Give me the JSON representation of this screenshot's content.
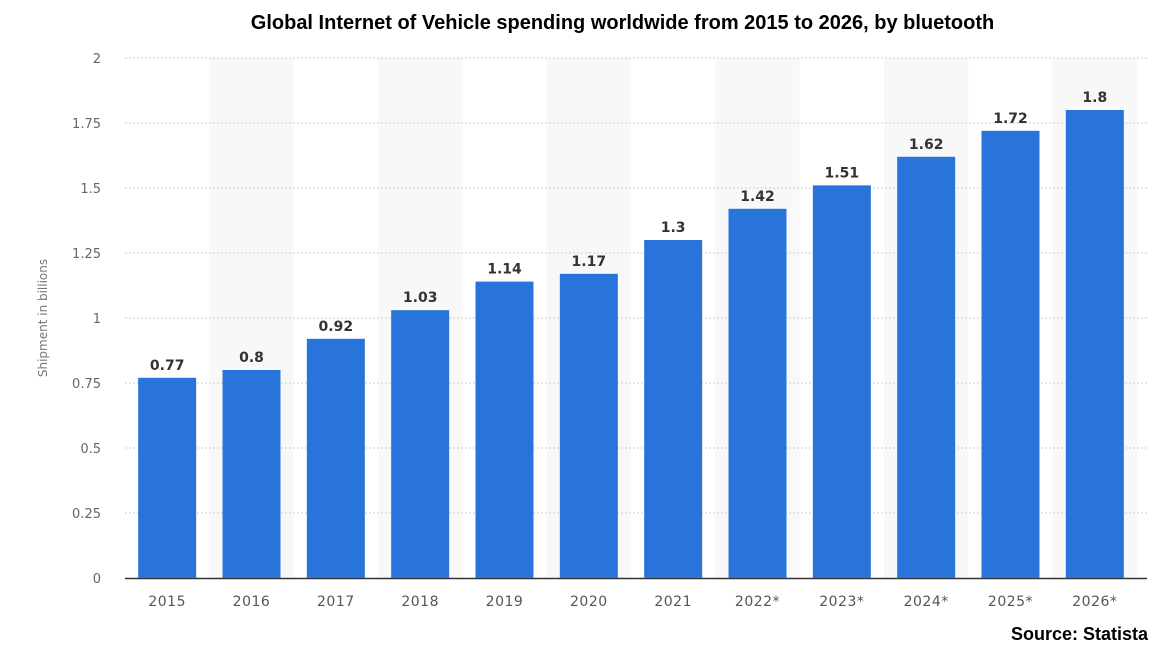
{
  "chart_data": {
    "type": "bar",
    "title": "Global Internet of Vehicle spending worldwide from 2015 to 2026, by bluetooth",
    "xlabel": "",
    "ylabel": "Shipment in billions",
    "ylim": [
      0,
      2
    ],
    "yticks": [
      "0",
      "0.25",
      "0.5",
      "0.75",
      "1",
      "1.25",
      "1.5",
      "1.75",
      "2"
    ],
    "categories": [
      "2015",
      "2016",
      "2017",
      "2018",
      "2019",
      "2020",
      "2021",
      "2022*",
      "2023*",
      "2024*",
      "2025*",
      "2026*"
    ],
    "values": [
      0.77,
      0.8,
      0.92,
      1.03,
      1.14,
      1.17,
      1.3,
      1.42,
      1.51,
      1.62,
      1.72,
      1.8
    ],
    "data_labels": [
      "0.77",
      "0.8",
      "0.92",
      "1.03",
      "1.14",
      "1.17",
      "1.3",
      "1.42",
      "1.51",
      "1.62",
      "1.72",
      "1.8"
    ],
    "grid": true,
    "bar_color": "#2874db",
    "band_color": "#f8f8f8",
    "source": "Source: Statista"
  }
}
